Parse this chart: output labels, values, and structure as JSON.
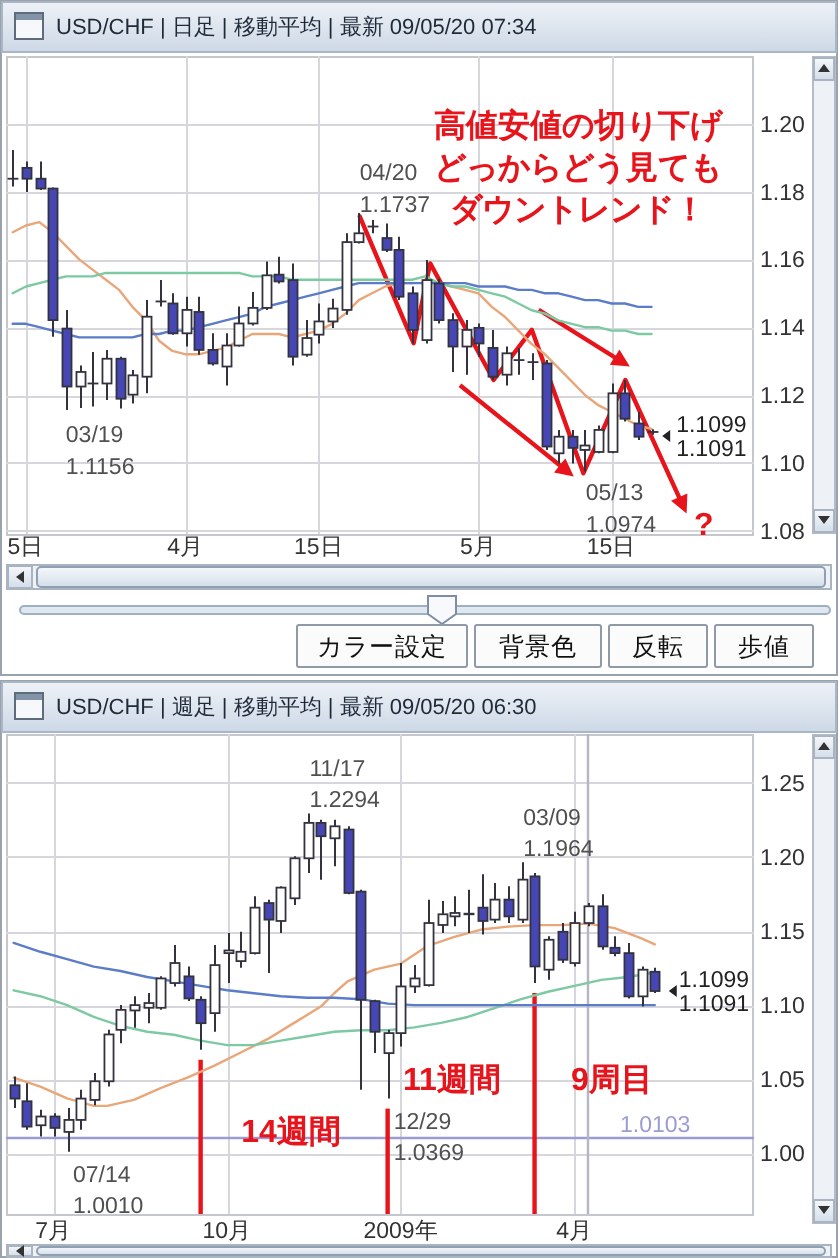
{
  "chart_data": [
    {
      "type": "candlestick",
      "title": "USD/CHF | 日足 | 移動平均 | 最新 09/05/20 07:34",
      "categories": [
        null,
        "5日",
        null,
        null,
        null,
        null,
        null,
        null,
        null,
        null,
        null,
        null,
        null,
        "4月",
        null,
        null,
        null,
        null,
        null,
        null,
        null,
        null,
        null,
        "15日",
        null,
        null,
        null,
        null,
        null,
        null,
        null,
        null,
        null,
        null,
        null,
        "5月",
        null,
        null,
        null,
        null,
        null,
        null,
        null,
        null,
        null,
        "15日",
        null,
        null,
        null
      ],
      "ohlc": [
        [
          1.1838,
          1.1923,
          1.1815,
          1.1838
        ],
        [
          1.187,
          1.1889,
          1.1799,
          1.1838
        ],
        [
          1.1838,
          1.1889,
          1.1805,
          1.1809
        ],
        [
          1.1809,
          1.1812,
          1.1372,
          1.1421
        ],
        [
          1.1396,
          1.1451,
          1.1156,
          1.1225
        ],
        [
          1.1225,
          1.1287,
          1.1162,
          1.1268
        ],
        [
          1.1234,
          1.1327,
          1.1166,
          1.1234
        ],
        [
          1.1234,
          1.1333,
          1.1185,
          1.1307
        ],
        [
          1.1307,
          1.1313,
          1.116,
          1.1189
        ],
        [
          1.1201,
          1.1274,
          1.1175,
          1.1258
        ],
        [
          1.1254,
          1.148,
          1.1205,
          1.1431
        ],
        [
          1.1476,
          1.1539,
          1.1461,
          1.1476
        ],
        [
          1.147,
          1.15,
          1.1378,
          1.1382
        ],
        [
          1.1382,
          1.149,
          1.1343,
          1.1451
        ],
        [
          1.1445,
          1.149,
          1.1319,
          1.1333
        ],
        [
          1.1333,
          1.1382,
          1.1287,
          1.1293
        ],
        [
          1.1284,
          1.1382,
          1.1228,
          1.1346
        ],
        [
          1.1346,
          1.1461,
          1.1343,
          1.1411
        ],
        [
          1.1411,
          1.1504,
          1.1405,
          1.1457
        ],
        [
          1.1457,
          1.1594,
          1.1451,
          1.1553
        ],
        [
          1.1555,
          1.1608,
          1.1529,
          1.1535
        ],
        [
          1.1539,
          1.1588,
          1.1287,
          1.1313
        ],
        [
          1.1319,
          1.1421,
          1.1313,
          1.1368
        ],
        [
          1.1378,
          1.147,
          1.1352,
          1.1417
        ],
        [
          1.1417,
          1.1484,
          1.1398,
          1.1455
        ],
        [
          1.1451,
          1.1677,
          1.1437,
          1.1651
        ],
        [
          1.1651,
          1.1737,
          1.1647,
          1.1677
        ],
        [
          1.1697,
          1.1716,
          1.1677,
          1.1697
        ],
        [
          1.1663,
          1.1706,
          1.1622,
          1.1628
        ],
        [
          1.1628,
          1.1667,
          1.148,
          1.149
        ],
        [
          1.15,
          1.152,
          1.1352,
          1.1392
        ],
        [
          1.1362,
          1.1598,
          1.1352,
          1.1539
        ],
        [
          1.1529,
          1.1543,
          1.1411,
          1.1421
        ],
        [
          1.1421,
          1.1441,
          1.1268,
          1.1343
        ],
        [
          1.1343,
          1.1421,
          1.126,
          1.1392
        ],
        [
          1.1398,
          1.1411,
          1.1313,
          1.1352
        ],
        [
          1.1339,
          1.1392,
          1.1244,
          1.1254
        ],
        [
          1.126,
          1.1343,
          1.1228,
          1.1323
        ],
        [
          1.1303,
          1.1339,
          1.126,
          1.1303
        ],
        [
          1.1297,
          1.1323,
          1.1244,
          1.1297
        ],
        [
          1.1293,
          1.1303,
          1.1038,
          1.1048
        ],
        [
          1.1028,
          1.1097,
          1.0998,
          1.1077
        ],
        [
          1.1077,
          1.1097,
          1.0998,
          1.1044
        ],
        [
          1.1038,
          1.1097,
          1.0974,
          1.1051
        ],
        [
          1.1032,
          1.111,
          1.1028,
          1.1097
        ],
        [
          1.1032,
          1.1234,
          1.1028,
          1.1205
        ],
        [
          1.1205,
          1.1244,
          1.1122,
          1.113
        ],
        [
          1.1116,
          1.115,
          1.1067,
          1.1077
        ],
        [
          1.1091,
          1.1099,
          1.1083,
          1.1091
        ]
      ],
      "colors": [
        "#ffffff",
        "#4646b4",
        "#4646b4",
        "#4646b4",
        "#4646b4",
        "#ffffff",
        "#ffffff",
        "#ffffff",
        "#4646b4",
        "#ffffff",
        "#ffffff",
        "#ffffff",
        "#4646b4",
        "#ffffff",
        "#4646b4",
        "#4646b4",
        "#ffffff",
        "#ffffff",
        "#ffffff",
        "#ffffff",
        "#4646b4",
        "#4646b4",
        "#ffffff",
        "#ffffff",
        "#ffffff",
        "#ffffff",
        "#ffffff",
        "#ffffff",
        "#4646b4",
        "#4646b4",
        "#4646b4",
        "#ffffff",
        "#4646b4",
        "#4646b4",
        "#ffffff",
        "#4646b4",
        "#4646b4",
        "#ffffff",
        "#ffffff",
        "#ffffff",
        "#4646b4",
        "#ffffff",
        "#4646b4",
        "#ffffff",
        "#ffffff",
        "#ffffff",
        "#4646b4",
        "#4646b4",
        "#ffffff"
      ],
      "series": [
        {
          "type": "line",
          "color": "#e9a679",
          "values": [
            1.168,
            1.17,
            1.171,
            1.168,
            1.164,
            1.16,
            1.157,
            1.154,
            1.151,
            1.146,
            1.142,
            1.136,
            1.133,
            1.132,
            1.132,
            1.133,
            1.134,
            1.136,
            1.138,
            1.138,
            1.138,
            1.137,
            1.138,
            1.139,
            1.141,
            1.144,
            1.148,
            1.15,
            1.152,
            1.153,
            1.153,
            null,
            1.153,
            1.152,
            1.151,
            1.15,
            1.146,
            1.143,
            1.139,
            1.135,
            1.132,
            1.128,
            1.124,
            1.12,
            1.117,
            1.115,
            1.113,
            1.111,
            1.11
          ]
        },
        {
          "type": "line",
          "color": "#7cc9a2",
          "values": [
            1.15,
            1.152,
            1.153,
            1.154,
            1.155,
            1.155,
            1.155,
            1.156,
            1.156,
            1.156,
            1.156,
            1.156,
            1.156,
            1.156,
            1.156,
            1.156,
            1.156,
            1.156,
            1.155,
            1.155,
            1.155,
            1.154,
            1.154,
            1.154,
            1.154,
            1.154,
            1.154,
            1.154,
            1.154,
            1.154,
            1.154,
            1.155,
            1.153,
            1.152,
            1.152,
            1.151,
            1.15,
            1.149,
            1.147,
            1.145,
            1.144,
            1.142,
            1.141,
            1.14,
            1.14,
            1.139,
            1.139,
            1.138,
            1.138
          ]
        },
        {
          "type": "line",
          "color": "#5b7cc9",
          "values": [
            1.141,
            1.141,
            1.14,
            1.139,
            1.138,
            1.137,
            1.137,
            1.137,
            1.137,
            1.137,
            1.138,
            1.138,
            1.139,
            1.139,
            1.14,
            1.141,
            1.142,
            1.143,
            1.144,
            1.146,
            1.147,
            1.148,
            1.149,
            1.15,
            1.151,
            1.152,
            1.153,
            1.153,
            1.153,
            1.153,
            1.153,
            1.153,
            1.153,
            1.153,
            1.153,
            1.152,
            1.152,
            1.152,
            1.151,
            1.151,
            1.15,
            1.15,
            1.149,
            1.148,
            1.148,
            1.147,
            1.147,
            1.146,
            1.146
          ]
        }
      ],
      "ylim": [
        1.079,
        1.22
      ],
      "yticks": [
        {
          "value": 1.08,
          "label": "1.08"
        },
        {
          "value": 1.1,
          "label": "1.10"
        },
        {
          "value": 1.12,
          "label": "1.12"
        },
        {
          "value": 1.14,
          "label": "1.14"
        },
        {
          "value": 1.16,
          "label": "1.16"
        },
        {
          "value": 1.18,
          "label": "1.18"
        },
        {
          "value": 1.2,
          "label": "1.20"
        }
      ],
      "grid": true,
      "annotations": [
        "03/19\n1.1156",
        "04/20\n1.1737",
        "05/13\n1.0974",
        "1.1099\n1.1091",
        "高値安値の切り下げどっからどう見てもダウントレンド！",
        "?"
      ]
    },
    {
      "type": "other",
      "annotations": [
        "カラー設定",
        "背景色",
        "反転",
        "歩値"
      ]
    },
    {
      "type": "candlestick",
      "title": "USD/CHF | 週足 | 移動平均 | 最新 09/05/20 06:30",
      "x": [
        "2008-06-16",
        "2008-06-23",
        "2008-06-30",
        "2008-07-07",
        "2008-07-14",
        "2008-07-21",
        "2008-07-28",
        "2008-08-04",
        "2008-08-11",
        "2008-08-18",
        "2008-08-25",
        "2008-09-01",
        "2008-09-08",
        "2008-09-15",
        "2008-09-22",
        "2008-09-29",
        "2008-10-06",
        "2008-10-13",
        "2008-10-20",
        "2008-10-27",
        "2008-11-03",
        "2008-11-10",
        "2008-11-17",
        "2008-11-24",
        "2008-12-01",
        "2008-12-08",
        "2008-12-15",
        "2008-12-22",
        "2008-12-29",
        "2009-01-05",
        "2009-01-12",
        "2009-01-19",
        "2009-01-26",
        "2009-02-02",
        "2009-02-09",
        "2009-02-16",
        "2009-02-23",
        "2009-03-02",
        "2009-03-09",
        "2009-03-16",
        "2009-03-23",
        "2009-03-30",
        "2009-04-06",
        "2009-04-13",
        "2009-04-20",
        "2009-04-27",
        "2009-05-04",
        "2009-05-11",
        "2009-05-18"
      ],
      "ohlc": [
        [
          1.0459,
          1.0518,
          1.0306,
          1.0369
        ],
        [
          1.0351,
          1.0473,
          1.0158,
          1.018
        ],
        [
          1.0189,
          1.0293,
          1.0113,
          1.0248
        ],
        [
          1.0248,
          1.027,
          1.0113,
          1.0171
        ],
        [
          1.0144,
          1.0306,
          1.001,
          1.0225
        ],
        [
          1.0225,
          1.0428,
          1.0158,
          1.0369
        ],
        [
          1.036,
          1.0541,
          1.0324,
          1.0486
        ],
        [
          1.0486,
          1.0833,
          1.045,
          1.0802
        ],
        [
          1.0833,
          1.1,
          1.0743,
          1.0968
        ],
        [
          1.0964,
          1.1059,
          1.0847,
          1.1
        ],
        [
          1.0982,
          1.1081,
          1.0878,
          1.1014
        ],
        [
          1.0982,
          1.1194,
          1.0968,
          1.118
        ],
        [
          1.1149,
          1.1405,
          1.1126,
          1.1284
        ],
        [
          1.1194,
          1.1261,
          1.1027,
          1.1045
        ],
        [
          1.1036,
          1.1059,
          1.0698,
          1.0878
        ],
        [
          1.0946,
          1.1405,
          1.082,
          1.127
        ],
        [
          1.1351,
          1.1486,
          1.1149,
          1.1369
        ],
        [
          1.1297,
          1.1495,
          1.1252,
          1.136
        ],
        [
          1.1351,
          1.1734,
          1.1342,
          1.1658
        ],
        [
          1.1689,
          1.1712,
          1.1216,
          1.1577
        ],
        [
          1.1568,
          1.1802,
          1.1486,
          1.1793
        ],
        [
          1.1721,
          1.2005,
          1.1676,
          1.1991
        ],
        [
          1.1991,
          1.2294,
          1.1892,
          1.223
        ],
        [
          1.223,
          1.2252,
          1.1847,
          1.214
        ],
        [
          1.2126,
          1.2252,
          1.1937,
          1.2207
        ],
        [
          1.2185,
          1.2207,
          1.1748,
          1.1757
        ],
        [
          1.1766,
          1.1779,
          1.0428,
          1.1036
        ],
        [
          1.1027,
          1.1036,
          1.0676,
          1.082
        ],
        [
          1.0676,
          1.0833,
          1.0369,
          1.0811
        ],
        [
          1.0811,
          1.1284,
          1.0721,
          1.1126
        ],
        [
          1.1126,
          1.127,
          1.1081,
          1.118
        ],
        [
          1.1135,
          1.1712,
          1.1126,
          1.1554
        ],
        [
          1.1541,
          1.1703,
          1.1486,
          1.1613
        ],
        [
          1.1599,
          1.1734,
          1.1532,
          1.1622
        ],
        [
          1.1613,
          1.1779,
          1.1486,
          1.1617
        ],
        [
          1.1658,
          1.1883,
          1.1477,
          1.1568
        ],
        [
          1.1577,
          1.1824,
          1.1554,
          1.1712
        ],
        [
          1.1712,
          1.1802,
          1.1554,
          1.1599
        ],
        [
          1.1577,
          1.1964,
          1.1554,
          1.1847
        ],
        [
          1.1869,
          1.1892,
          1.1149,
          1.1261
        ],
        [
          1.1239,
          1.1464,
          1.1171,
          1.1441
        ],
        [
          1.1495,
          1.1554,
          1.1284,
          1.1306
        ],
        [
          1.1284,
          1.1631,
          1.1261,
          1.1554
        ],
        [
          1.1554,
          1.1689,
          1.1532,
          1.1667
        ],
        [
          1.1667,
          1.1748,
          1.1374,
          1.1396
        ],
        [
          1.1387,
          1.1464,
          1.1329,
          1.1351
        ],
        [
          1.1351,
          1.1419,
          1.1045,
          1.1059
        ],
        [
          1.1059,
          1.1261,
          1.0991,
          1.1239
        ],
        [
          1.1225,
          1.1252,
          1.1081,
          1.1095
        ]
      ],
      "colors": [
        "#4646b4",
        "#4646b4",
        "#ffffff",
        "#4646b4",
        "#ffffff",
        "#ffffff",
        "#ffffff",
        "#ffffff",
        "#ffffff",
        "#ffffff",
        "#ffffff",
        "#ffffff",
        "#ffffff",
        "#4646b4",
        "#4646b4",
        "#ffffff",
        "#ffffff",
        "#ffffff",
        "#ffffff",
        "#4646b4",
        "#ffffff",
        "#ffffff",
        "#ffffff",
        "#4646b4",
        "#ffffff",
        "#4646b4",
        "#4646b4",
        "#4646b4",
        "#ffffff",
        "#ffffff",
        "#ffffff",
        "#ffffff",
        "#ffffff",
        "#ffffff",
        "#ffffff",
        "#4646b4",
        "#ffffff",
        "#4646b4",
        "#ffffff",
        "#4646b4",
        "#ffffff",
        "#4646b4",
        "#ffffff",
        "#ffffff",
        "#4646b4",
        "#4646b4",
        "#4646b4",
        "#ffffff",
        "#4646b4"
      ],
      "series": [
        {
          "type": "line",
          "color": "#e9a679",
          "x": [
            "2008-06-16",
            "2008-06-30",
            "2008-07-14",
            "2008-07-28",
            "2008-08-04",
            "2008-08-18",
            "2008-09-01",
            "2008-09-15",
            "2008-09-29",
            "2008-10-13",
            "2008-10-27",
            "2008-11-10",
            "2008-11-24",
            "2008-12-01",
            "2008-12-08",
            "2008-12-22",
            "2009-01-05",
            "2009-01-19",
            "2009-02-02",
            "2009-02-16",
            "2009-03-02",
            "2009-03-16",
            "2009-03-30",
            "2009-04-13",
            "2009-04-27",
            "2009-05-11",
            "2009-05-18"
          ],
          "values": [
            1.051,
            1.045,
            1.037,
            1.032,
            1.032,
            1.036,
            1.044,
            1.051,
            1.059,
            1.068,
            1.077,
            1.088,
            1.099,
            1.108,
            1.116,
            1.124,
            1.128,
            1.14,
            1.146,
            1.151,
            1.153,
            1.154,
            1.154,
            1.155,
            1.152,
            1.145,
            1.141
          ]
        },
        {
          "type": "line",
          "color": "#7cc9a2",
          "x": [
            "2008-06-16",
            "2008-06-30",
            "2008-07-14",
            "2008-07-28",
            "2008-08-11",
            "2008-08-25",
            "2008-09-08",
            "2008-09-22",
            "2008-10-06",
            "2008-10-20",
            "2008-11-03",
            "2008-11-17",
            "2008-12-01",
            "2008-12-15",
            "2008-12-29",
            "2009-01-12",
            "2009-01-26",
            "2009-02-09",
            "2009-02-23",
            "2009-03-09",
            "2009-03-23",
            "2009-04-06",
            "2009-04-20",
            "2009-05-04",
            "2009-05-18"
          ],
          "values": [
            1.11,
            1.106,
            1.1,
            1.092,
            1.086,
            1.082,
            1.08,
            1.076,
            1.073,
            1.073,
            1.076,
            1.079,
            1.082,
            1.083,
            1.083,
            1.085,
            1.088,
            1.092,
            1.098,
            1.104,
            1.109,
            1.113,
            1.117,
            1.119,
            1.122
          ]
        },
        {
          "type": "line",
          "color": "#5b7cc9",
          "x": [
            "2008-06-16",
            "2008-06-30",
            "2008-07-14",
            "2008-07-28",
            "2008-08-11",
            "2008-08-25",
            "2008-09-08",
            "2008-09-22",
            "2008-10-06",
            "2008-10-20",
            "2008-11-03",
            "2008-11-17",
            "2008-12-01",
            "2008-12-15",
            "2008-12-29",
            "2009-01-12",
            "2009-02-09",
            "2009-03-23",
            "2009-05-18"
          ],
          "values": [
            1.142,
            1.136,
            1.131,
            1.126,
            1.123,
            1.119,
            1.116,
            1.113,
            1.11,
            1.108,
            1.106,
            1.105,
            1.105,
            1.104,
            1.101,
            1.1,
            1.1,
            1.1,
            1.1
          ]
        }
      ],
      "xlim": [
        "2008-06-12",
        "2009-07-09"
      ],
      "xticks": [
        {
          "value": "2008-07-07",
          "label": "7月"
        },
        {
          "value": "2008-10-06",
          "label": "10月"
        },
        {
          "value": "2009-01-05",
          "label": "2009年"
        },
        {
          "value": "2009-04-06",
          "label": "4月"
        }
      ],
      "ylim": [
        0.959,
        1.283
      ],
      "yticks": [
        {
          "value": 1.0,
          "label": "1.00"
        },
        {
          "value": 1.05,
          "label": "1.05"
        },
        {
          "value": 1.1,
          "label": "1.10"
        },
        {
          "value": 1.15,
          "label": "1.15"
        },
        {
          "value": 1.2,
          "label": "1.20"
        },
        {
          "value": 1.25,
          "label": "1.25"
        }
      ],
      "grid": true,
      "ref_lines": [
        {
          "axis": "y",
          "value": 1.0103,
          "label": "1.0103",
          "color": "#9c9cd4"
        },
        {
          "axis": "x",
          "value": "2008-09-22",
          "color": "#e8141b"
        },
        {
          "axis": "x",
          "value": "2008-12-29",
          "color": "#e8141b"
        },
        {
          "axis": "x",
          "value": "2009-03-16",
          "color": "#e8141b"
        },
        {
          "axis": "x",
          "value": "2009-04-13",
          "color": "#b5b5c5"
        }
      ],
      "annotations": [
        {
          "text": "07/14\n1.0010",
          "x": "2008-07-14",
          "y": 1.001
        },
        {
          "text": "11/17\n1.2294",
          "x": "2008-11-17",
          "y": 1.2294
        },
        {
          "text": "12/29\n1.0369",
          "x": "2008-12-29",
          "y": 1.0369
        },
        {
          "text": "03/09\n1.1964",
          "x": "2009-03-09",
          "y": 1.1964
        },
        {
          "text": "1.1099\n1.1091",
          "x": "2009-05-18",
          "y": 1.1095
        },
        "14週間",
        "11週間",
        "9周目"
      ]
    }
  ]
}
